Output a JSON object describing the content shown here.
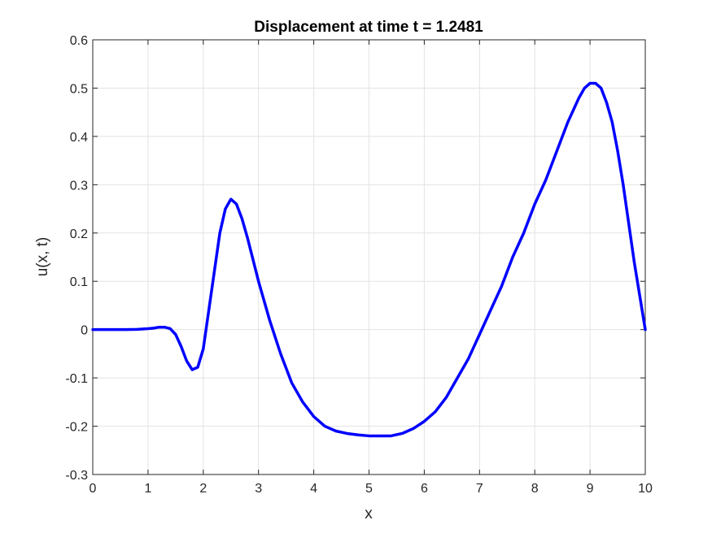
{
  "chart_data": {
    "type": "line",
    "title": "Displacement at time t = 1.2481",
    "xlabel": "x",
    "ylabel": "u(x, t)",
    "xlim": [
      0,
      10
    ],
    "ylim": [
      -0.3,
      0.6
    ],
    "xticks": [
      0,
      1,
      2,
      3,
      4,
      5,
      6,
      7,
      8,
      9,
      10
    ],
    "yticks": [
      -0.3,
      -0.2,
      -0.1,
      0,
      0.1,
      0.2,
      0.3,
      0.4,
      0.5,
      0.6
    ],
    "xtick_labels": [
      "0",
      "1",
      "2",
      "3",
      "4",
      "5",
      "6",
      "7",
      "8",
      "9",
      "10"
    ],
    "ytick_labels": [
      "-0.3",
      "-0.2",
      "-0.1",
      "0",
      "0.1",
      "0.2",
      "0.3",
      "0.4",
      "0.5",
      "0.6"
    ],
    "grid": true,
    "series": [
      {
        "color": "#0000ff",
        "x": [
          0,
          0.3,
          0.6,
          0.8,
          1.0,
          1.1,
          1.2,
          1.3,
          1.4,
          1.5,
          1.6,
          1.7,
          1.8,
          1.9,
          2.0,
          2.1,
          2.2,
          2.3,
          2.4,
          2.5,
          2.6,
          2.7,
          2.8,
          3.0,
          3.2,
          3.4,
          3.6,
          3.8,
          4.0,
          4.2,
          4.4,
          4.6,
          4.8,
          5.0,
          5.2,
          5.4,
          5.6,
          5.8,
          6.0,
          6.2,
          6.4,
          6.6,
          6.8,
          7.0,
          7.2,
          7.4,
          7.6,
          7.8,
          8.0,
          8.2,
          8.4,
          8.6,
          8.8,
          8.9,
          9.0,
          9.1,
          9.2,
          9.3,
          9.4,
          9.5,
          9.6,
          9.7,
          9.8,
          9.9,
          10.0
        ],
        "values": [
          0,
          0,
          0,
          0.0005,
          0.002,
          0.003,
          0.005,
          0.005,
          0.002,
          -0.01,
          -0.035,
          -0.065,
          -0.083,
          -0.078,
          -0.04,
          0.04,
          0.12,
          0.2,
          0.25,
          0.27,
          0.26,
          0.23,
          0.19,
          0.1,
          0.02,
          -0.05,
          -0.11,
          -0.15,
          -0.18,
          -0.2,
          -0.21,
          -0.215,
          -0.218,
          -0.22,
          -0.22,
          -0.22,
          -0.215,
          -0.205,
          -0.19,
          -0.17,
          -0.14,
          -0.1,
          -0.06,
          -0.01,
          0.04,
          0.09,
          0.15,
          0.2,
          0.26,
          0.31,
          0.37,
          0.43,
          0.48,
          0.5,
          0.51,
          0.51,
          0.5,
          0.47,
          0.43,
          0.37,
          0.3,
          0.22,
          0.14,
          0.07,
          0
        ]
      }
    ]
  }
}
